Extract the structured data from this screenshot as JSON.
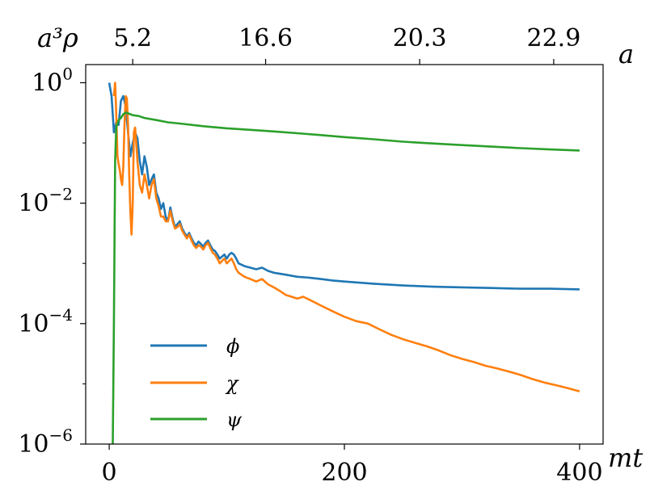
{
  "chart_data": {
    "type": "line",
    "xlabel": "mt",
    "ylabel": "a³ρ",
    "top_xlabel": "a",
    "xlim": [
      -20,
      420
    ],
    "ylim": [
      1e-06,
      2
    ],
    "yscale": "log",
    "x_ticks": [
      {
        "value": 0,
        "label": "0"
      },
      {
        "value": 200,
        "label": "200"
      },
      {
        "value": 400,
        "label": "400"
      }
    ],
    "y_ticks": [
      {
        "value": 1e-06,
        "base": "10",
        "exp": "−6"
      },
      {
        "value": 0.0001,
        "base": "10",
        "exp": "−4"
      },
      {
        "value": 0.01,
        "base": "10",
        "exp": "−2"
      },
      {
        "value": 1,
        "base": "10",
        "exp": "0"
      }
    ],
    "top_ticks": [
      {
        "value": 20,
        "label": "5.2"
      },
      {
        "value": 133,
        "label": "16.6"
      },
      {
        "value": 264,
        "label": "20.3"
      },
      {
        "value": 378,
        "label": "22.9"
      }
    ],
    "legend": {
      "placement": "lower-left"
    },
    "grid": false,
    "series": [
      {
        "name": "ϕ",
        "color": "#1f77b4",
        "points": [
          [
            0,
            1.0
          ],
          [
            2,
            0.6
          ],
          [
            4,
            0.15
          ],
          [
            6,
            0.22
          ],
          [
            8,
            0.2
          ],
          [
            10,
            0.5
          ],
          [
            12,
            0.6
          ],
          [
            14,
            0.4
          ],
          [
            16,
            0.15
          ],
          [
            18,
            0.06
          ],
          [
            20,
            0.1
          ],
          [
            22,
            0.15
          ],
          [
            24,
            0.12
          ],
          [
            26,
            0.05
          ],
          [
            28,
            0.03
          ],
          [
            30,
            0.06
          ],
          [
            32,
            0.04
          ],
          [
            34,
            0.02
          ],
          [
            36,
            0.025
          ],
          [
            38,
            0.03
          ],
          [
            40,
            0.015
          ],
          [
            42,
            0.012
          ],
          [
            44,
            0.008
          ],
          [
            46,
            0.01
          ],
          [
            48,
            0.006
          ],
          [
            50,
            0.005
          ],
          [
            52,
            0.0085
          ],
          [
            54,
            0.0055
          ],
          [
            56,
            0.004
          ],
          [
            58,
            0.0045
          ],
          [
            60,
            0.005
          ],
          [
            62,
            0.0038
          ],
          [
            64,
            0.0032
          ],
          [
            66,
            0.0028
          ],
          [
            68,
            0.0032
          ],
          [
            70,
            0.0026
          ],
          [
            72,
            0.0022
          ],
          [
            74,
            0.002
          ],
          [
            76,
            0.0023
          ],
          [
            78,
            0.0021
          ],
          [
            80,
            0.0019
          ],
          [
            82,
            0.0022
          ],
          [
            84,
            0.0024
          ],
          [
            86,
            0.002
          ],
          [
            88,
            0.0017
          ],
          [
            90,
            0.0016
          ],
          [
            92,
            0.0014
          ],
          [
            94,
            0.0012
          ],
          [
            96,
            0.0013
          ],
          [
            98,
            0.0014
          ],
          [
            100,
            0.0012
          ],
          [
            102,
            0.0014
          ],
          [
            104,
            0.0015
          ],
          [
            106,
            0.0014
          ],
          [
            108,
            0.0012
          ],
          [
            110,
            0.001
          ],
          [
            115,
            0.0009
          ],
          [
            120,
            0.00085
          ],
          [
            125,
            0.0008
          ],
          [
            130,
            0.00085
          ],
          [
            135,
            0.00075
          ],
          [
            140,
            0.0007
          ],
          [
            150,
            0.00065
          ],
          [
            160,
            0.0006
          ],
          [
            170,
            0.00058
          ],
          [
            180,
            0.00055
          ],
          [
            190,
            0.00052
          ],
          [
            200,
            0.0005
          ],
          [
            225,
            0.00046
          ],
          [
            250,
            0.00043
          ],
          [
            275,
            0.00041
          ],
          [
            300,
            0.0004
          ],
          [
            325,
            0.00039
          ],
          [
            350,
            0.00038
          ],
          [
            375,
            0.00038
          ],
          [
            400,
            0.00037
          ]
        ]
      },
      {
        "name": "χ",
        "color": "#ff7f0e",
        "points": [
          [
            4,
            0.6
          ],
          [
            5,
            1.0
          ],
          [
            6,
            0.3
          ],
          [
            7,
            0.06
          ],
          [
            8,
            0.045
          ],
          [
            9,
            0.035
          ],
          [
            10,
            0.025
          ],
          [
            11,
            0.02
          ],
          [
            12,
            0.04
          ],
          [
            13,
            0.2
          ],
          [
            14,
            0.6
          ],
          [
            15,
            0.55
          ],
          [
            16,
            0.2
          ],
          [
            17,
            0.03
          ],
          [
            18,
            0.007
          ],
          [
            19,
            0.003
          ],
          [
            20,
            0.01
          ],
          [
            21,
            0.15
          ],
          [
            22,
            0.18
          ],
          [
            23,
            0.1
          ],
          [
            24,
            0.05
          ],
          [
            26,
            0.02
          ],
          [
            28,
            0.015
          ],
          [
            30,
            0.03
          ],
          [
            32,
            0.02
          ],
          [
            34,
            0.012
          ],
          [
            36,
            0.02
          ],
          [
            38,
            0.025
          ],
          [
            40,
            0.012
          ],
          [
            42,
            0.009
          ],
          [
            44,
            0.006
          ],
          [
            46,
            0.006
          ],
          [
            48,
            0.005
          ],
          [
            50,
            0.005
          ],
          [
            52,
            0.0075
          ],
          [
            54,
            0.005
          ],
          [
            56,
            0.0038
          ],
          [
            58,
            0.004
          ],
          [
            60,
            0.0045
          ],
          [
            62,
            0.0035
          ],
          [
            64,
            0.003
          ],
          [
            66,
            0.0026
          ],
          [
            68,
            0.003
          ],
          [
            70,
            0.0024
          ],
          [
            72,
            0.002
          ],
          [
            74,
            0.0018
          ],
          [
            76,
            0.002
          ],
          [
            78,
            0.0019
          ],
          [
            80,
            0.0017
          ],
          [
            82,
            0.002
          ],
          [
            84,
            0.0022
          ],
          [
            86,
            0.0018
          ],
          [
            88,
            0.0015
          ],
          [
            90,
            0.0014
          ],
          [
            92,
            0.0012
          ],
          [
            94,
            0.001
          ],
          [
            96,
            0.0011
          ],
          [
            98,
            0.0012
          ],
          [
            100,
            0.001
          ],
          [
            102,
            0.0011
          ],
          [
            104,
            0.0012
          ],
          [
            106,
            0.001
          ],
          [
            108,
            0.0008
          ],
          [
            110,
            0.0007
          ],
          [
            115,
            0.0006
          ],
          [
            120,
            0.00055
          ],
          [
            125,
            0.0005
          ],
          [
            130,
            0.00055
          ],
          [
            135,
            0.00045
          ],
          [
            140,
            0.0004
          ],
          [
            145,
            0.00035
          ],
          [
            150,
            0.0003
          ],
          [
            155,
            0.00028
          ],
          [
            160,
            0.00026
          ],
          [
            165,
            0.00028
          ],
          [
            170,
            0.00025
          ],
          [
            180,
            0.0002
          ],
          [
            190,
            0.00016
          ],
          [
            200,
            0.00013
          ],
          [
            210,
            0.00011
          ],
          [
            220,
            0.0001
          ],
          [
            230,
            8e-05
          ],
          [
            240,
            6.5e-05
          ],
          [
            250,
            5.5e-05
          ],
          [
            260,
            4.8e-05
          ],
          [
            270,
            4.2e-05
          ],
          [
            280,
            3.6e-05
          ],
          [
            290,
            3e-05
          ],
          [
            300,
            2.6e-05
          ],
          [
            310,
            2.3e-05
          ],
          [
            320,
            2e-05
          ],
          [
            330,
            1.8e-05
          ],
          [
            340,
            1.6e-05
          ],
          [
            350,
            1.4e-05
          ],
          [
            360,
            1.2e-05
          ],
          [
            370,
            1.05e-05
          ],
          [
            380,
            9.5e-06
          ],
          [
            390,
            8.5e-06
          ],
          [
            400,
            7.5e-06
          ]
        ]
      },
      {
        "name": "ψ",
        "color": "#2ca02c",
        "points": [
          [
            3,
            1e-06
          ],
          [
            4,
            0.0001
          ],
          [
            5,
            0.05
          ],
          [
            6,
            0.18
          ],
          [
            8,
            0.24
          ],
          [
            10,
            0.26
          ],
          [
            12,
            0.3
          ],
          [
            14,
            0.32
          ],
          [
            16,
            0.31
          ],
          [
            18,
            0.3
          ],
          [
            20,
            0.29
          ],
          [
            25,
            0.28
          ],
          [
            30,
            0.26
          ],
          [
            40,
            0.24
          ],
          [
            50,
            0.22
          ],
          [
            60,
            0.21
          ],
          [
            80,
            0.19
          ],
          [
            100,
            0.175
          ],
          [
            120,
            0.165
          ],
          [
            140,
            0.155
          ],
          [
            160,
            0.145
          ],
          [
            180,
            0.135
          ],
          [
            200,
            0.125
          ],
          [
            225,
            0.115
          ],
          [
            250,
            0.105
          ],
          [
            275,
            0.098
          ],
          [
            300,
            0.092
          ],
          [
            325,
            0.087
          ],
          [
            350,
            0.082
          ],
          [
            375,
            0.078
          ],
          [
            400,
            0.075
          ]
        ]
      }
    ]
  }
}
